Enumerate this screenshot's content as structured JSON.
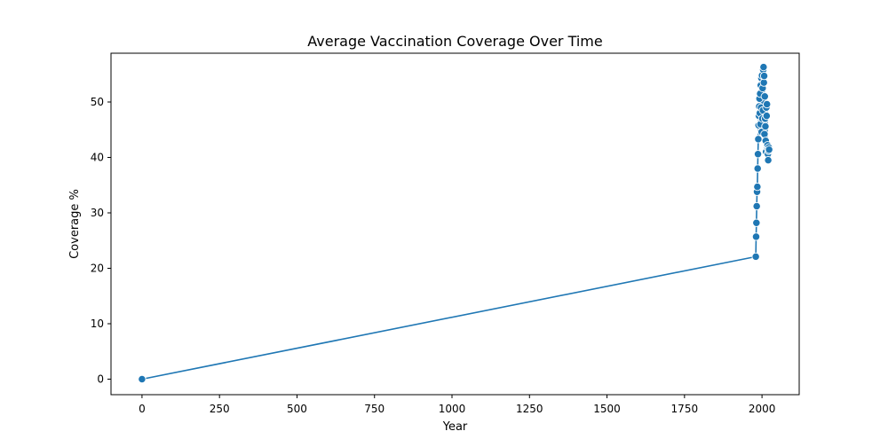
{
  "chart_data": {
    "type": "line",
    "title": "Average Vaccination Coverage Over Time",
    "xlabel": "Year",
    "ylabel": "Coverage %",
    "xlim": [
      -100,
      2120
    ],
    "ylim": [
      -2.8,
      58.8
    ],
    "xticks": [
      0,
      250,
      500,
      750,
      1000,
      1250,
      1500,
      1750,
      2000
    ],
    "yticks": [
      0,
      10,
      20,
      30,
      40,
      50
    ],
    "grid": false,
    "legend": "none",
    "colors": {
      "line": "#1f77b4",
      "marker_edge": "#ffffff",
      "axes": "#000000"
    },
    "marker": "circle",
    "series": [
      {
        "x": [
          0,
          1980,
          1981,
          1982,
          1983,
          1984,
          1985,
          1986,
          1987,
          1988,
          1989,
          1990,
          1991,
          1992,
          1993,
          1994,
          1995,
          1996,
          1997,
          1998,
          1999,
          2000,
          2001,
          2002,
          2003,
          2004,
          2005,
          2006,
          2007,
          2008,
          2009,
          2010,
          2011,
          2012,
          2013,
          2014,
          2015,
          2016,
          2017,
          2018,
          2019,
          2020,
          2021,
          2022,
          2023
        ],
        "values": [
          0,
          22.1,
          25.7,
          28.2,
          31.2,
          33.8,
          34.7,
          38.0,
          40.6,
          43.3,
          45.8,
          47.5,
          49.2,
          50.6,
          48.0,
          51.5,
          46.0,
          53.0,
          49.0,
          54.3,
          44.6,
          54.8,
          47.0,
          52.5,
          48.5,
          55.8,
          56.3,
          53.5,
          54.7,
          44.2,
          51.0,
          47.0,
          45.6,
          43.0,
          41.0,
          49.0,
          47.5,
          49.6,
          41.9,
          42.2,
          40.6,
          39.5,
          41.2,
          41.8,
          41.4
        ]
      }
    ]
  }
}
